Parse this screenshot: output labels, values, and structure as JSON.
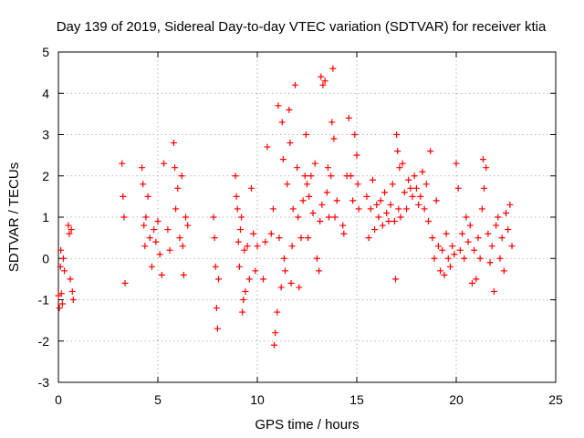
{
  "chart_data": {
    "type": "scatter",
    "title": "Day 139 of 2019, Sidereal Day-to-day VTEC variation (SDTVAR) for receiver ktia",
    "xlabel": "GPS time / hours",
    "ylabel": "SDTVAR / TECUs",
    "xlim": [
      0,
      25
    ],
    "ylim": [
      -3,
      5
    ],
    "xticks": [
      "0",
      "5",
      "10",
      "15",
      "20",
      "25"
    ],
    "yticks": [
      "-3",
      "-2",
      "-1",
      "0",
      "1",
      "2",
      "3",
      "4",
      "5"
    ],
    "grid": true,
    "marker": "plus",
    "color": "#ff0000",
    "series": [
      {
        "name": "SDTVAR",
        "points": [
          [
            0.0,
            -0.9
          ],
          [
            0.05,
            -1.2
          ],
          [
            0.1,
            -0.2
          ],
          [
            0.12,
            0.2
          ],
          [
            0.15,
            -0.85
          ],
          [
            0.2,
            -1.1
          ],
          [
            0.25,
            0.0
          ],
          [
            0.3,
            -0.3
          ],
          [
            0.5,
            0.8
          ],
          [
            0.55,
            0.6
          ],
          [
            0.6,
            -0.5
          ],
          [
            0.65,
            0.7
          ],
          [
            0.7,
            -0.8
          ],
          [
            0.75,
            -1.0
          ],
          [
            3.2,
            2.3
          ],
          [
            3.25,
            1.5
          ],
          [
            3.3,
            1.0
          ],
          [
            3.35,
            -0.6
          ],
          [
            4.2,
            2.2
          ],
          [
            4.25,
            1.8
          ],
          [
            4.3,
            0.8
          ],
          [
            4.35,
            0.3
          ],
          [
            4.4,
            1.0
          ],
          [
            4.5,
            1.5
          ],
          [
            4.6,
            0.5
          ],
          [
            4.7,
            -0.2
          ],
          [
            4.8,
            0.7
          ],
          [
            4.9,
            0.4
          ],
          [
            5.0,
            0.9
          ],
          [
            5.1,
            0.1
          ],
          [
            5.2,
            -0.4
          ],
          [
            5.3,
            2.3
          ],
          [
            5.5,
            0.7
          ],
          [
            5.6,
            0.2
          ],
          [
            5.8,
            2.8
          ],
          [
            5.85,
            2.2
          ],
          [
            5.9,
            1.2
          ],
          [
            6.0,
            1.7
          ],
          [
            6.1,
            0.5
          ],
          [
            6.2,
            2.0
          ],
          [
            6.25,
            0.3
          ],
          [
            6.3,
            -0.4
          ],
          [
            6.4,
            1.0
          ],
          [
            6.5,
            0.8
          ],
          [
            7.8,
            1.0
          ],
          [
            7.85,
            0.5
          ],
          [
            7.9,
            -0.2
          ],
          [
            7.95,
            -1.2
          ],
          [
            8.0,
            -1.7
          ],
          [
            8.05,
            -0.5
          ],
          [
            8.9,
            2.0
          ],
          [
            8.95,
            1.5
          ],
          [
            9.0,
            1.2
          ],
          [
            9.05,
            0.4
          ],
          [
            9.1,
            -0.2
          ],
          [
            9.15,
            0.7
          ],
          [
            9.2,
            1.0
          ],
          [
            9.25,
            -1.3
          ],
          [
            9.3,
            -1.0
          ],
          [
            9.35,
            0.2
          ],
          [
            9.4,
            -0.8
          ],
          [
            9.5,
            0.3
          ],
          [
            9.6,
            -0.5
          ],
          [
            9.7,
            1.7
          ],
          [
            9.8,
            0.6
          ],
          [
            9.9,
            -0.3
          ],
          [
            10.0,
            0.3
          ],
          [
            10.3,
            -0.5
          ],
          [
            10.4,
            0.4
          ],
          [
            10.5,
            2.7
          ],
          [
            10.7,
            0.6
          ],
          [
            10.8,
            1.2
          ],
          [
            10.85,
            -2.1
          ],
          [
            10.9,
            -1.8
          ],
          [
            11.0,
            -1.3
          ],
          [
            11.05,
            3.7
          ],
          [
            11.1,
            0.5
          ],
          [
            11.2,
            -0.7
          ],
          [
            11.25,
            3.3
          ],
          [
            11.3,
            2.4
          ],
          [
            11.35,
            0.0
          ],
          [
            11.4,
            -0.3
          ],
          [
            11.5,
            1.8
          ],
          [
            11.6,
            3.6
          ],
          [
            11.65,
            2.8
          ],
          [
            11.7,
            -0.6
          ],
          [
            11.75,
            0.3
          ],
          [
            11.8,
            1.2
          ],
          [
            11.9,
            4.2
          ],
          [
            12.0,
            2.2
          ],
          [
            12.05,
            1.0
          ],
          [
            12.1,
            -0.7
          ],
          [
            12.2,
            0.5
          ],
          [
            12.3,
            1.4
          ],
          [
            12.4,
            2.0
          ],
          [
            12.45,
            3.0
          ],
          [
            12.5,
            1.8
          ],
          [
            12.55,
            0.5
          ],
          [
            12.6,
            1.5
          ],
          [
            12.7,
            2.0
          ],
          [
            12.8,
            1.1
          ],
          [
            12.9,
            2.3
          ],
          [
            13.0,
            0.0
          ],
          [
            13.1,
            -0.3
          ],
          [
            13.15,
            0.9
          ],
          [
            13.2,
            4.4
          ],
          [
            13.25,
            1.3
          ],
          [
            13.3,
            4.2
          ],
          [
            13.4,
            4.3
          ],
          [
            13.5,
            1.6
          ],
          [
            13.55,
            2.2
          ],
          [
            13.6,
            1.0
          ],
          [
            13.7,
            2.0
          ],
          [
            13.75,
            3.3
          ],
          [
            13.8,
            4.6
          ],
          [
            13.85,
            2.9
          ],
          [
            13.9,
            1.0
          ],
          [
            14.0,
            1.4
          ],
          [
            14.3,
            0.8
          ],
          [
            14.35,
            0.6
          ],
          [
            14.5,
            2.0
          ],
          [
            14.6,
            3.4
          ],
          [
            14.7,
            2.0
          ],
          [
            14.8,
            1.4
          ],
          [
            14.9,
            3.0
          ],
          [
            15.0,
            2.5
          ],
          [
            15.05,
            1.8
          ],
          [
            15.1,
            1.2
          ],
          [
            15.5,
            1.5
          ],
          [
            15.6,
            0.5
          ],
          [
            15.7,
            1.2
          ],
          [
            15.8,
            1.9
          ],
          [
            15.9,
            0.7
          ],
          [
            16.0,
            1.3
          ],
          [
            16.1,
            1.0
          ],
          [
            16.2,
            1.4
          ],
          [
            16.3,
            0.8
          ],
          [
            16.4,
            1.6
          ],
          [
            16.5,
            1.1
          ],
          [
            16.6,
            0.9
          ],
          [
            16.7,
            1.3
          ],
          [
            16.8,
            1.8
          ],
          [
            16.9,
            0.9
          ],
          [
            16.95,
            -0.5
          ],
          [
            17.0,
            3.0
          ],
          [
            17.05,
            2.6
          ],
          [
            17.1,
            1.2
          ],
          [
            17.15,
            2.2
          ],
          [
            17.2,
            1.0
          ],
          [
            17.3,
            2.3
          ],
          [
            17.4,
            1.6
          ],
          [
            17.5,
            1.2
          ],
          [
            17.6,
            1.9
          ],
          [
            17.7,
            1.7
          ],
          [
            17.8,
            1.5
          ],
          [
            17.9,
            2.0
          ],
          [
            18.0,
            1.7
          ],
          [
            18.1,
            1.3
          ],
          [
            18.2,
            1.5
          ],
          [
            18.3,
            2.1
          ],
          [
            18.4,
            1.2
          ],
          [
            18.5,
            1.8
          ],
          [
            18.6,
            0.9
          ],
          [
            18.7,
            2.6
          ],
          [
            18.8,
            0.5
          ],
          [
            18.9,
            0.0
          ],
          [
            19.0,
            1.4
          ],
          [
            19.1,
            0.3
          ],
          [
            19.2,
            -0.3
          ],
          [
            19.3,
            0.2
          ],
          [
            19.4,
            -0.4
          ],
          [
            19.5,
            0.6
          ],
          [
            19.6,
            0.0
          ],
          [
            19.7,
            -0.2
          ],
          [
            19.8,
            0.3
          ],
          [
            19.9,
            0.1
          ],
          [
            20.0,
            2.3
          ],
          [
            20.1,
            1.7
          ],
          [
            20.2,
            0.2
          ],
          [
            20.3,
            0.6
          ],
          [
            20.4,
            0.0
          ],
          [
            20.5,
            1.0
          ],
          [
            20.6,
            0.4
          ],
          [
            20.7,
            0.8
          ],
          [
            20.8,
            -0.6
          ],
          [
            20.9,
            0.2
          ],
          [
            21.0,
            -0.5
          ],
          [
            21.1,
            0.5
          ],
          [
            21.2,
            0.0
          ],
          [
            21.3,
            1.2
          ],
          [
            21.35,
            2.4
          ],
          [
            21.4,
            1.7
          ],
          [
            21.5,
            2.2
          ],
          [
            21.6,
            0.6
          ],
          [
            21.7,
            -0.1
          ],
          [
            21.8,
            0.3
          ],
          [
            21.9,
            -0.8
          ],
          [
            22.0,
            0.8
          ],
          [
            22.1,
            1.0
          ],
          [
            22.2,
            0.0
          ],
          [
            22.3,
            0.5
          ],
          [
            22.4,
            -0.3
          ],
          [
            22.5,
            1.1
          ],
          [
            22.6,
            0.7
          ],
          [
            22.7,
            1.3
          ],
          [
            22.8,
            0.3
          ]
        ]
      }
    ]
  }
}
